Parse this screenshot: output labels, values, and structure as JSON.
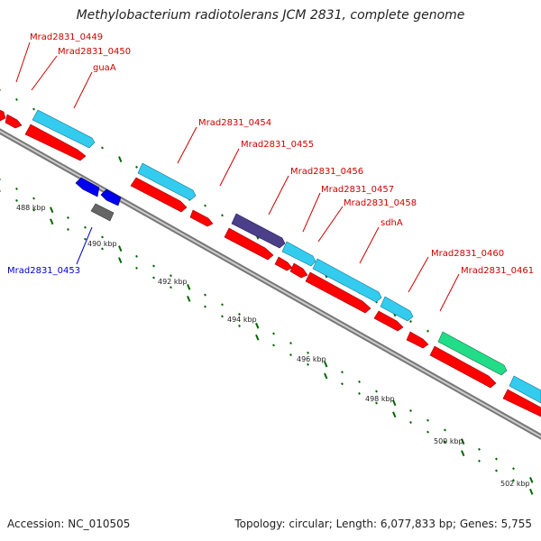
{
  "title": "Methylobacterium radiotolerans JCM 2831, complete genome",
  "footer": {
    "accession": "Accession: NC_010505",
    "stats": "Topology: circular; Length: 6,077,833 bp; Genes: 5,755"
  },
  "colors": {
    "cds_forward": "#ff0000",
    "gene_forward": "#33ccee",
    "cds_reverse": "#0000ee",
    "other_feature_gray": "#666666",
    "rna_feature_purple": "#4b3f8a",
    "rna_feature_green": "#22dd88",
    "backbone": "#999999",
    "tick_marks": "#006600",
    "label_red": "#cc0000",
    "label_blue": "#0000cc"
  },
  "scale_labels": [
    "488 kbp",
    "490 kbp",
    "492 kbp",
    "494 kbp",
    "496 kbp",
    "498 kbp",
    "500 kbp",
    "502 kbp"
  ],
  "gene_labels": [
    {
      "text": "Mrad2831_0449",
      "strand": "forward"
    },
    {
      "text": "Mrad2831_0450",
      "strand": "forward"
    },
    {
      "text": "guaA",
      "strand": "forward"
    },
    {
      "text": "Mrad2831_0454",
      "strand": "forward"
    },
    {
      "text": "Mrad2831_0455",
      "strand": "forward"
    },
    {
      "text": "Mrad2831_0456",
      "strand": "forward"
    },
    {
      "text": "Mrad2831_0457",
      "strand": "forward"
    },
    {
      "text": "Mrad2831_0458",
      "strand": "forward"
    },
    {
      "text": "sdhA",
      "strand": "forward"
    },
    {
      "text": "Mrad2831_0460",
      "strand": "forward"
    },
    {
      "text": "Mrad2831_0461",
      "strand": "forward"
    },
    {
      "text": "Mrad2831_0453",
      "strand": "reverse"
    }
  ]
}
